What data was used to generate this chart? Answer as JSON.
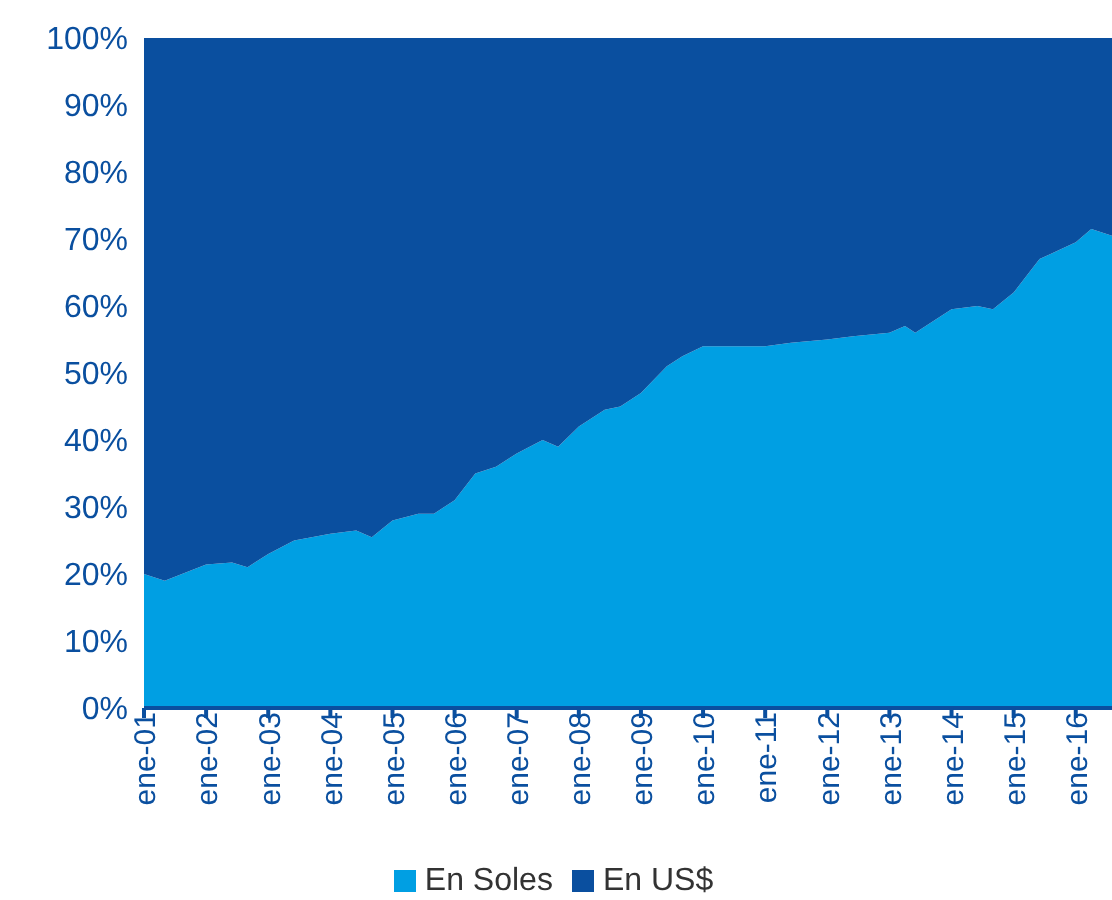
{
  "chart_data": {
    "type": "area",
    "stacked": true,
    "x": [
      "2001-01",
      "2001-05",
      "2002-01",
      "2002-06",
      "2002-09",
      "2003-01",
      "2003-06",
      "2004-01",
      "2004-06",
      "2004-09",
      "2005-01",
      "2005-06",
      "2005-09",
      "2006-01",
      "2006-05",
      "2006-09",
      "2007-01",
      "2007-06",
      "2007-09",
      "2008-01",
      "2008-06",
      "2008-09",
      "2009-01",
      "2009-06",
      "2009-09",
      "2010-01",
      "2010-06",
      "2011-01",
      "2011-06",
      "2012-01",
      "2012-06",
      "2013-01",
      "2013-04",
      "2013-06",
      "2014-01",
      "2014-06",
      "2014-09",
      "2015-01",
      "2015-06",
      "2016-01",
      "2016-04",
      "2016-08"
    ],
    "series": [
      {
        "name": "En Soles",
        "color": "#009fe3",
        "values": [
          20,
          19,
          21.4,
          21.7,
          21,
          23,
          25,
          26,
          26.5,
          25.5,
          28,
          29,
          29,
          31,
          35,
          36,
          38,
          40,
          39,
          42,
          44.5,
          45,
          47,
          51,
          52.5,
          54,
          54,
          54,
          54.5,
          55,
          55.5,
          56,
          57,
          56,
          59.5,
          60,
          59.5,
          62,
          67,
          69.5,
          71.5,
          70.5
        ]
      },
      {
        "name": "En US$",
        "color": "#0a4f9f",
        "values": [
          80,
          81,
          78.6,
          78.3,
          79,
          77,
          75,
          74,
          73.5,
          74.5,
          72,
          71,
          71,
          69,
          65,
          64,
          62,
          60,
          61,
          58,
          55.5,
          55,
          53,
          49,
          47.5,
          46,
          46,
          46,
          45.5,
          45,
          44.5,
          44,
          43,
          44,
          40.5,
          40,
          40.5,
          38,
          33,
          30.5,
          28.5,
          29.5
        ]
      }
    ],
    "xlim": [
      "2001-01",
      "2016-08"
    ],
    "xticks": [
      {
        "value": "2001-01",
        "label": "ene-01"
      },
      {
        "value": "2002-01",
        "label": "ene-02"
      },
      {
        "value": "2003-01",
        "label": "ene-03"
      },
      {
        "value": "2004-01",
        "label": "ene-04"
      },
      {
        "value": "2005-01",
        "label": "ene-05"
      },
      {
        "value": "2006-01",
        "label": "ene-06"
      },
      {
        "value": "2007-01",
        "label": "ene-07"
      },
      {
        "value": "2008-01",
        "label": "ene-08"
      },
      {
        "value": "2009-01",
        "label": "ene-09"
      },
      {
        "value": "2010-01",
        "label": "ene-10"
      },
      {
        "value": "2011-01",
        "label": "ene-11"
      },
      {
        "value": "2012-01",
        "label": "ene-12"
      },
      {
        "value": "2013-01",
        "label": "ene-13"
      },
      {
        "value": "2014-01",
        "label": "ene-14"
      },
      {
        "value": "2015-01",
        "label": "ene-15"
      },
      {
        "value": "2016-01",
        "label": "ene-16"
      }
    ],
    "ylim": [
      0,
      100
    ],
    "yticks": [
      {
        "value": 0,
        "label": "0%"
      },
      {
        "value": 10,
        "label": "10%"
      },
      {
        "value": 20,
        "label": "20%"
      },
      {
        "value": 30,
        "label": "30%"
      },
      {
        "value": 40,
        "label": "40%"
      },
      {
        "value": 50,
        "label": "50%"
      },
      {
        "value": 60,
        "label": "60%"
      },
      {
        "value": 70,
        "label": "70%"
      },
      {
        "value": 80,
        "label": "80%"
      },
      {
        "value": 90,
        "label": "90%"
      },
      {
        "value": 100,
        "label": "100%"
      }
    ],
    "grid": false,
    "legend": "bottom"
  }
}
